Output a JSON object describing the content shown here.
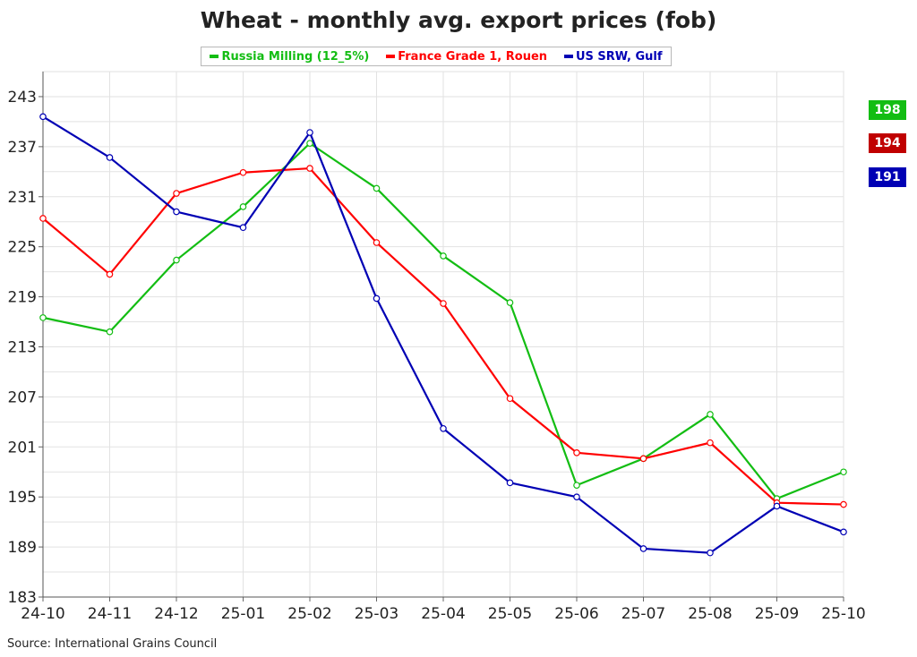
{
  "chart_data": {
    "type": "line",
    "title": "Wheat - monthly avg. export prices (fob)",
    "xlabel": "",
    "ylabel": "",
    "categories": [
      "24-10",
      "24-11",
      "24-12",
      "25-01",
      "25-02",
      "25-03",
      "25-04",
      "25-05",
      "25-06",
      "25-07",
      "25-08",
      "25-09",
      "25-10"
    ],
    "ylim": [
      183,
      246
    ],
    "yticks": [
      183,
      189,
      195,
      201,
      207,
      213,
      219,
      225,
      231,
      237,
      243
    ],
    "grid": true,
    "legend_position": "top-center",
    "series": [
      {
        "name": "Russia Milling (12_5%)",
        "color": "#13bd13",
        "values": [
          216.5,
          214.8,
          223.4,
          229.8,
          237.4,
          232.0,
          223.9,
          218.3,
          196.4,
          199.6,
          204.9,
          194.8,
          198.0
        ]
      },
      {
        "name": "France Grade 1, Rouen",
        "color": "#ff0000",
        "values": [
          228.4,
          221.7,
          231.4,
          233.9,
          234.4,
          225.5,
          218.2,
          206.8,
          200.3,
          199.6,
          201.5,
          194.3,
          194.1
        ]
      },
      {
        "name": "US SRW, Gulf",
        "color": "#0000b4",
        "values": [
          240.6,
          235.7,
          229.2,
          227.3,
          238.7,
          218.8,
          203.2,
          196.7,
          195.0,
          188.8,
          188.3,
          193.9,
          190.8
        ]
      }
    ],
    "last_value_badges": [
      {
        "label": "198",
        "color": "#13bd13"
      },
      {
        "label": "194",
        "color": "#c00000"
      },
      {
        "label": "191",
        "color": "#0000b4"
      }
    ]
  },
  "source_note": "Source: International Grains Council"
}
